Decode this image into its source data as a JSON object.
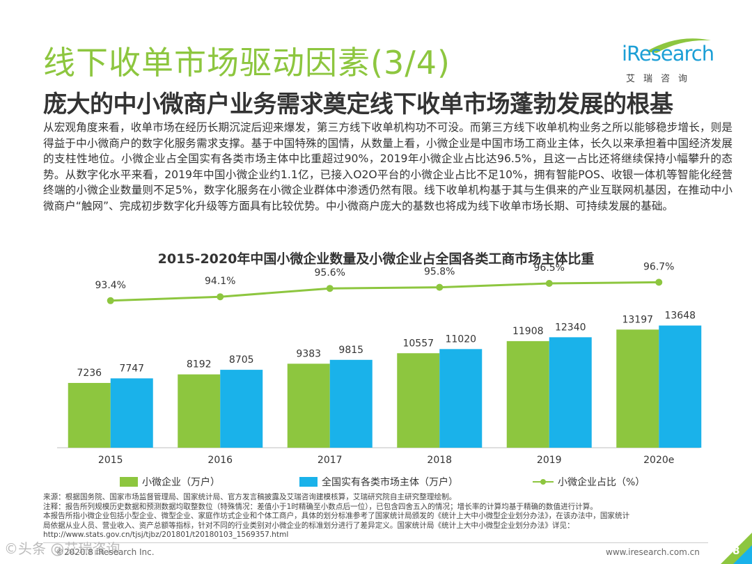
{
  "header": {
    "title": "线下收单市场驱动因素(3/4)",
    "subtitle": "庞大的中小微商户业务需求奠定线下收单市场蓬勃发展的根基"
  },
  "logo": {
    "text": "iResearch",
    "cn": "艾瑞咨询"
  },
  "body_text": "从宏观角度来看，收单市场在经历长期沉淀后迎来爆发，第三方线下收单机构功不可没。而第三方线下收单机构业务之所以能够稳步增长，则是得益于中小微商户的数字化服务需求支撑。基于中国特殊的国情，从数量上看，小微企业是中国市场工商业主体，长久以来承担着中国经济发展的支柱性地位。小微企业占全国实有各类市场主体中比重超过90%，2019年小微企业占比达96.5%，且这一占比还将继续保持小幅攀升的态势。从数字化水平来看，2019年中国小微企业约1.1亿，已接入O2O平台的小微企业占比不足10%，拥有智能POS、收银一体机等智能化经营终端的小微企业数量则不足5%，数字化服务在小微企业群体中渗透仍然有限。线下收单机构基于其与生俱来的产业互联网机基因，在推动中小微商户“触网”、完成初步数字化升级等方面具有比较优势。中小微商户庞大的基数也将成为线下收单市场长期、可持续发展的基础。",
  "chart_data": {
    "type": "bar",
    "title": "2015-2020年中国小微企业数量及小微企业占全国各类工商市场主体比重",
    "categories": [
      "2015",
      "2016",
      "2017",
      "2018",
      "2019",
      "2020e"
    ],
    "series": [
      {
        "name": "小微企业（万户）",
        "type": "bar",
        "color": "#8dc63f",
        "values": [
          7236,
          8192,
          9383,
          10557,
          11908,
          13197
        ]
      },
      {
        "name": "全国实有各类市场主体（万户）",
        "type": "bar",
        "color": "#1ab2ea",
        "values": [
          7747,
          8705,
          9815,
          11020,
          12340,
          13648
        ]
      },
      {
        "name": "小微企业占比（%）",
        "type": "line",
        "color": "#8dc63f",
        "values": [
          93.4,
          94.1,
          95.6,
          95.8,
          96.5,
          96.7
        ],
        "labels": [
          "93.4%",
          "94.1%",
          "95.6%",
          "95.8%",
          "96.5%",
          "96.7%"
        ]
      }
    ],
    "ylim": [
      0,
      14000
    ],
    "line_ylim": [
      88,
      98
    ],
    "xlabel": "",
    "ylabel": "",
    "grid": false,
    "legend": "bottom"
  },
  "notes": {
    "source": "来源：根据国务院、国家市场监督管理局、国家统计局、官方发言稿披露及艾瑞咨询建模核算，艾瑞研究院自主研究整理绘制。",
    "note": "注释：报告所列规模历史数据和预测数据均取整数位（特殊情况：差值小于1时精确至小数点后一位），已包含四舍五入的情况；增长率的计算均基于精确的数值进行计算。",
    "definition_1": "本报告所指小微企业包括小型企业、微型企业、家庭作坊式企业和个体工商户，具体的划分标准参考了国家统计局颁发的《统计上大中小微型企业划分办法》，在该办法中，国家统计",
    "definition_2": "局依据从业人员、营业收入、资产总额等指标，针对不同的行业类别对小微企业的标准划分进行了差异定义。国家统计局《统计上大中小微型企业划分办法》详见：",
    "url": "http://www.stats.gov.cn/tjsj/tjbz/201801/t20180103_1569357.html"
  },
  "footer": {
    "left": "©2020.8 iResearch Inc.",
    "right": "www.iresearch.com.cn",
    "page": "8",
    "watermark": "©头条 @艾瑞咨询"
  }
}
